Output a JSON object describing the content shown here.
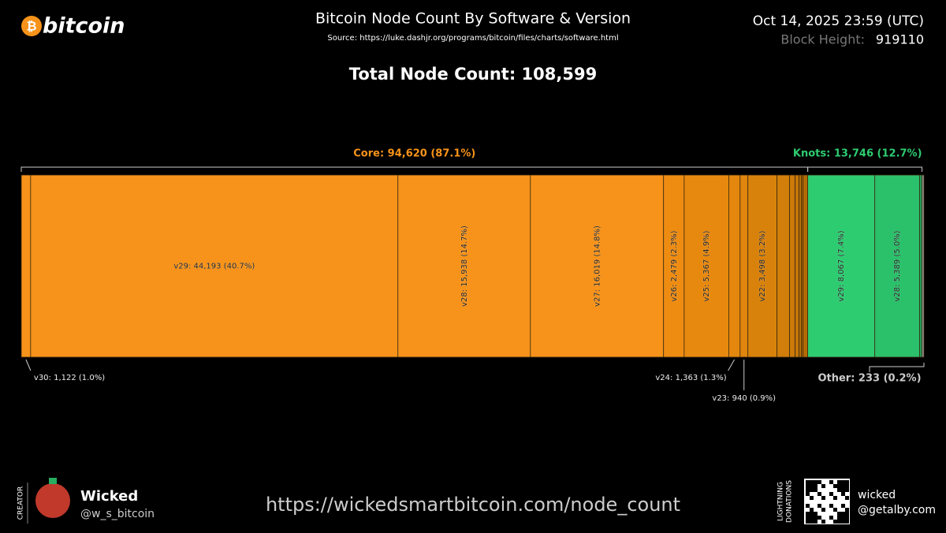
{
  "header": {
    "logo": "bitcoin",
    "title": "Bitcoin Node Count By Software & Version",
    "source": "Source: https://luke.dashjr.org/programs/bitcoin/files/charts/software.html",
    "timestamp": "Oct 14, 2025 23:59 (UTC)",
    "block_height_label": "Block Height:",
    "block_height": "919110"
  },
  "chart_data": {
    "type": "stacked-bar",
    "total": 108599,
    "total_label": "Total Node Count: 108,599",
    "series": [
      {
        "name": "Core",
        "label": "Core: 94,620 (87.1%)",
        "total": 94620,
        "label_color": "#f7931a",
        "values": [
          1122,
          44193,
          15938,
          16019,
          2479,
          5367,
          1363,
          940,
          3498,
          1518,
          664,
          474,
          285,
          190,
          570
        ],
        "value_labels": [
          "v30:  1,122 (1.0%)",
          "v29:  44,193 (40.7%)",
          "v28:  15,938 (14.7%)",
          "v27:  16,019 (14.8%)",
          "v26:  2,479 (2.3%)",
          "v25:  5,367 (4.9%)",
          "v24:  1,363 (1.3%)",
          "v23:  940 (0.9%)",
          "v22:  3,498 (3.2%)",
          null,
          null,
          null,
          null,
          null,
          null
        ],
        "colors": [
          "#f7931a",
          "#f7931a",
          "#f7931a",
          "#f7931a",
          "#ee8c12",
          "#e8890f",
          "#e4870e",
          "#e0850d",
          "#d9820b",
          "#d27e0a",
          "#cc7a09",
          "#c67608",
          "#c07207",
          "#ba6e06",
          "#b46a05"
        ]
      },
      {
        "name": "Knots",
        "label": "Knots: 13,746 (12.7%)",
        "total": 13746,
        "label_color": "#2ecc71",
        "values": [
          8067,
          5389,
          290
        ],
        "value_labels": [
          "v29:  8,067 (7.4%)",
          "v28:  5,389 (5.0%)",
          null
        ],
        "colors": [
          "#2ecc71",
          "#2bc06a",
          "#249e58"
        ]
      },
      {
        "name": "Other",
        "label": "Other: 233 (0.2%)",
        "total": 233,
        "label_color": "#cccccc",
        "values": [
          233
        ],
        "value_labels": [
          null
        ],
        "colors": [
          "#999999"
        ]
      }
    ]
  },
  "footer": {
    "creator_tag": "CREATOR",
    "creator_name": "Wicked",
    "creator_handle": "@w_s_bitcoin",
    "url": "https://wickedsmartbitcoin.com/node_count",
    "donation_tag_1": "LIGHTNING",
    "donation_tag_2": "DONATIONS",
    "donation_name": "wicked",
    "donation_address": "@getalby.com"
  }
}
